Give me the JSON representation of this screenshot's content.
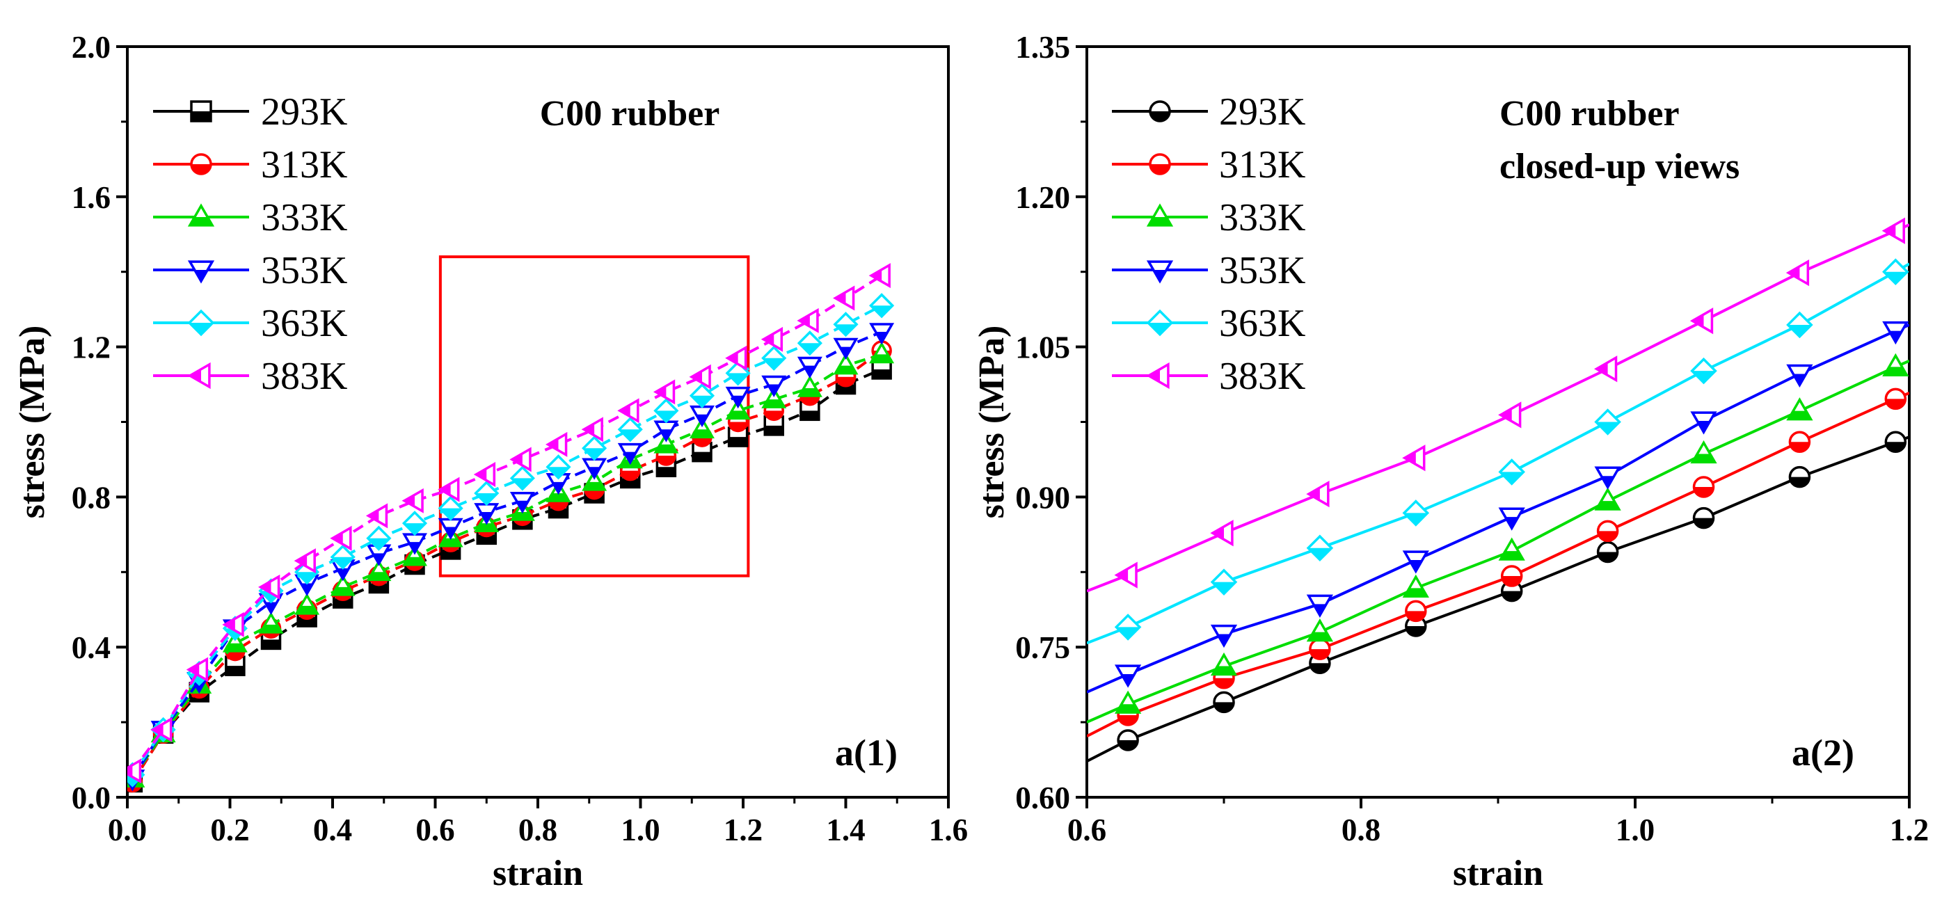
{
  "chart_data": [
    {
      "type": "line",
      "title": "C00 rubber",
      "subtitle": "",
      "panel_label": "a(1)",
      "xlabel": "strain",
      "ylabel": "stress (MPa)",
      "xlim": [
        0.0,
        1.6
      ],
      "ylim": [
        0.0,
        2.0
      ],
      "xticks": [
        0.0,
        0.2,
        0.4,
        0.6,
        0.8,
        1.0,
        1.2,
        1.4,
        1.6
      ],
      "xtick_labels": [
        "0.0",
        "0.2",
        "0.4",
        "0.6",
        "0.8",
        "1.0",
        "1.2",
        "1.4",
        "1.6"
      ],
      "yticks": [
        0.0,
        0.4,
        0.8,
        1.2,
        1.6,
        2.0
      ],
      "ytick_labels": [
        "0.0",
        "0.4",
        "0.8",
        "1.2",
        "1.6",
        "2.0"
      ],
      "line_style": "dashed",
      "legend_position": "top-left",
      "zoom_box": {
        "x": [
          0.61,
          1.21
        ],
        "y": [
          0.59,
          1.44
        ],
        "color": "#ff0000"
      },
      "x": [
        0.01,
        0.07,
        0.14,
        0.21,
        0.28,
        0.35,
        0.42,
        0.49,
        0.56,
        0.63,
        0.7,
        0.77,
        0.84,
        0.91,
        0.98,
        1.05,
        1.12,
        1.19,
        1.26,
        1.33,
        1.4,
        1.47
      ],
      "series": [
        {
          "name": "293K",
          "color": "#000000",
          "marker": "square-half",
          "values": [
            0.04,
            0.17,
            0.28,
            0.35,
            0.42,
            0.48,
            0.53,
            0.57,
            0.62,
            0.66,
            0.7,
            0.74,
            0.77,
            0.81,
            0.85,
            0.88,
            0.92,
            0.96,
            0.99,
            1.03,
            1.1,
            1.14
          ]
        },
        {
          "name": "313K",
          "color": "#ff0000",
          "marker": "circle-half",
          "values": [
            0.04,
            0.17,
            0.29,
            0.39,
            0.45,
            0.5,
            0.55,
            0.59,
            0.63,
            0.68,
            0.72,
            0.75,
            0.79,
            0.82,
            0.87,
            0.91,
            0.96,
            1.0,
            1.03,
            1.07,
            1.12,
            1.19
          ]
        },
        {
          "name": "333K",
          "color": "#00dd00",
          "marker": "triangle-up-half",
          "values": [
            0.05,
            0.17,
            0.3,
            0.41,
            0.46,
            0.51,
            0.56,
            0.6,
            0.64,
            0.69,
            0.73,
            0.76,
            0.81,
            0.84,
            0.9,
            0.94,
            0.98,
            1.03,
            1.06,
            1.09,
            1.15,
            1.18
          ]
        },
        {
          "name": "353K",
          "color": "#0000ff",
          "marker": "triangle-down-half",
          "values": [
            0.05,
            0.18,
            0.31,
            0.45,
            0.52,
            0.57,
            0.61,
            0.65,
            0.68,
            0.72,
            0.76,
            0.79,
            0.84,
            0.88,
            0.92,
            0.98,
            1.02,
            1.07,
            1.1,
            1.15,
            1.2,
            1.24
          ]
        },
        {
          "name": "363K",
          "color": "#00e5ff",
          "marker": "diamond-half",
          "values": [
            0.06,
            0.18,
            0.33,
            0.45,
            0.55,
            0.6,
            0.64,
            0.69,
            0.73,
            0.77,
            0.81,
            0.85,
            0.88,
            0.93,
            0.98,
            1.03,
            1.07,
            1.13,
            1.17,
            1.21,
            1.26,
            1.31
          ]
        },
        {
          "name": "383K",
          "color": "#ff00ff",
          "marker": "triangle-left-half",
          "values": [
            0.07,
            0.18,
            0.34,
            0.46,
            0.56,
            0.63,
            0.69,
            0.75,
            0.79,
            0.82,
            0.86,
            0.9,
            0.94,
            0.98,
            1.03,
            1.08,
            1.12,
            1.17,
            1.22,
            1.27,
            1.33,
            1.39
          ]
        }
      ]
    },
    {
      "type": "line",
      "title": "C00 rubber",
      "subtitle": "closed-up views",
      "panel_label": "a(2)",
      "xlabel": "strain",
      "ylabel": "stress (MPa)",
      "xlim": [
        0.6,
        1.2
      ],
      "ylim": [
        0.6,
        1.35
      ],
      "xticks": [
        0.6,
        0.8,
        1.0,
        1.2
      ],
      "xtick_labels": [
        "0.6",
        "0.8",
        "1.0",
        "1.2"
      ],
      "yticks": [
        0.6,
        0.75,
        0.9,
        1.05,
        1.2,
        1.35
      ],
      "ytick_labels": [
        "0.60",
        "0.75",
        "0.90",
        "1.05",
        "1.20",
        "1.35"
      ],
      "line_style": "solid",
      "legend_position": "top-left",
      "x": [
        0.6,
        0.63,
        0.7,
        0.77,
        0.84,
        0.91,
        0.98,
        1.05,
        1.12,
        1.19,
        1.2
      ],
      "marker_from_index": 1,
      "marker_to_index": 9,
      "series": [
        {
          "name": "293K",
          "color": "#000000",
          "marker": "circle-half",
          "values": [
            0.636,
            0.657,
            0.695,
            0.734,
            0.771,
            0.806,
            0.845,
            0.879,
            0.92,
            0.955,
            0.96
          ]
        },
        {
          "name": "313K",
          "color": "#ff0000",
          "marker": "circle-half",
          "values": [
            0.661,
            0.682,
            0.719,
            0.748,
            0.786,
            0.821,
            0.866,
            0.91,
            0.955,
            0.998,
            1.004
          ]
        },
        {
          "name": "333K",
          "color": "#00dd00",
          "marker": "triangle-up-half",
          "values": [
            0.675,
            0.693,
            0.731,
            0.765,
            0.809,
            0.846,
            0.896,
            0.943,
            0.986,
            1.03,
            1.036
          ]
        },
        {
          "name": "353K",
          "color": "#0000ff",
          "marker": "triangle-down-half",
          "values": [
            0.705,
            0.723,
            0.763,
            0.793,
            0.837,
            0.88,
            0.921,
            0.976,
            1.023,
            1.066,
            1.072
          ]
        },
        {
          "name": "363K",
          "color": "#00e5ff",
          "marker": "diamond-half",
          "values": [
            0.754,
            0.77,
            0.815,
            0.849,
            0.884,
            0.925,
            0.975,
            1.026,
            1.072,
            1.125,
            1.133
          ]
        },
        {
          "name": "383K",
          "color": "#ff00ff",
          "marker": "triangle-left-half",
          "values": [
            0.806,
            0.822,
            0.864,
            0.903,
            0.939,
            0.982,
            1.028,
            1.076,
            1.124,
            1.166,
            1.172
          ]
        }
      ]
    }
  ]
}
